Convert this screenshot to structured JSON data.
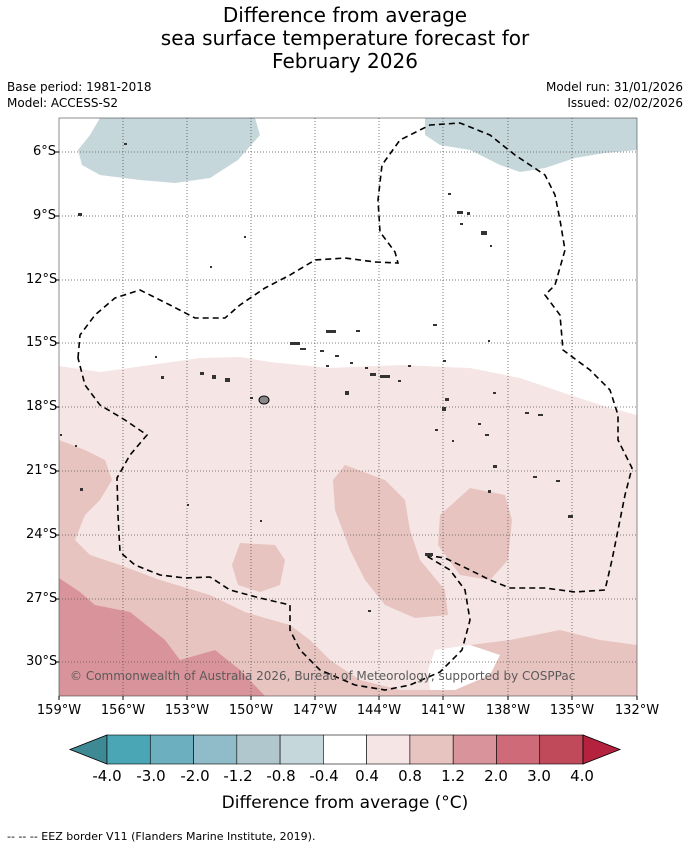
{
  "title": {
    "line1": "Difference from average",
    "line2": "sea surface temperature forecast for",
    "line3": "February 2026"
  },
  "meta": {
    "base_period": "Base period: 1981-2018",
    "model": "Model: ACCESS-S2",
    "model_run": "Model run: 31/01/2026",
    "issued": "Issued: 02/02/2026"
  },
  "axes": {
    "lat_labels": [
      "6°S",
      "9°S",
      "12°S",
      "15°S",
      "18°S",
      "21°S",
      "24°S",
      "27°S",
      "30°S"
    ],
    "lon_labels": [
      "159°W",
      "156°W",
      "153°W",
      "150°W",
      "147°W",
      "144°W",
      "141°W",
      "138°W",
      "135°W",
      "132°W"
    ]
  },
  "copyright": "© Commonwealth of Australia 2026, Bureau of Meteorology, supported by COSPPac",
  "colorbar": {
    "title": "Difference from average (°C)",
    "tick_labels": [
      "-4.0",
      "-3.0",
      "-2.0",
      "-1.2",
      "-0.8",
      "-0.4",
      "0.4",
      "0.8",
      "1.2",
      "2.0",
      "3.0",
      "4.0"
    ],
    "colors": [
      "#3d8a94",
      "#4aa6b5",
      "#6cafbf",
      "#8fbcc8",
      "#b0c7cd",
      "#c6d7db",
      "#ffffff",
      "#f5e6e5",
      "#e8c4c1",
      "#d9939a",
      "#cf6b78",
      "#c04a5a",
      "#b5223e"
    ]
  },
  "footer": "--  --  -- EEZ border V11 (Flanders Marine Institute, 2019)."
}
